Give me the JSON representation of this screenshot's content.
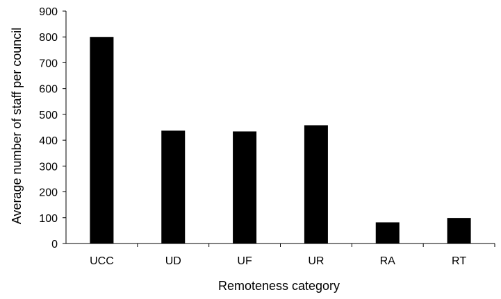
{
  "chart_data": {
    "type": "bar",
    "title": "",
    "xlabel": "Remoteness category",
    "ylabel": "Average number of staff per council",
    "categories": [
      "UCC",
      "UD",
      "UF",
      "UR",
      "RA",
      "RT"
    ],
    "values": [
      800,
      437,
      434,
      458,
      82,
      99
    ],
    "ylim": [
      0,
      900
    ],
    "yticks": [
      0,
      100,
      200,
      300,
      400,
      500,
      600,
      700,
      800,
      900
    ],
    "grid": false,
    "legend": "none",
    "bar_color": "#000000"
  }
}
